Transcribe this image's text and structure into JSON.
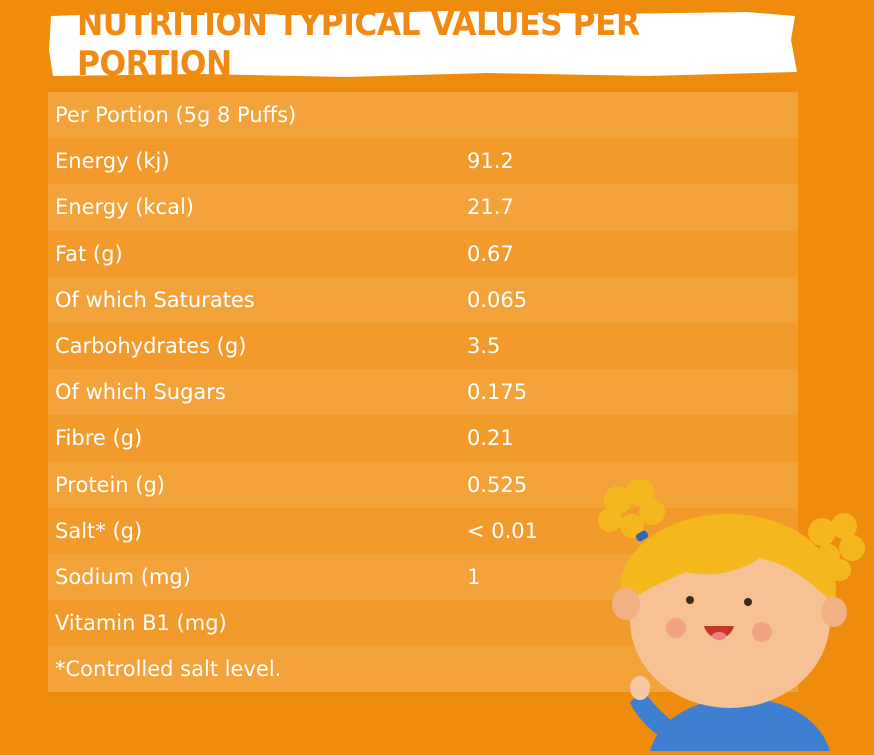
{
  "title": "NUTRITION TYPICAL VALUES PER PORTION",
  "rows": [
    {
      "label": "Per Portion (5g 8 Puffs)",
      "value": ""
    },
    {
      "label": "Energy (kj)",
      "value": "91.2"
    },
    {
      "label": "Energy (kcal)",
      "value": "21.7"
    },
    {
      "label": "Fat (g)",
      "value": "0.67"
    },
    {
      "label": "Of which Saturates",
      "value": "0.065"
    },
    {
      "label": "Carbohydrates (g)",
      "value": "3.5"
    },
    {
      "label": "Of which Sugars",
      "value": "0.175"
    },
    {
      "label": "Fibre (g)",
      "value": "0.21"
    },
    {
      "label": "Protein (g)",
      "value": "0.525"
    },
    {
      "label": "Salt* (g)",
      "value": "< 0.01"
    },
    {
      "label": "Sodium (mg)",
      "value": "1"
    },
    {
      "label": "Vitamin B1 (mg)",
      "value": ""
    },
    {
      "label": "*Controlled salt level.",
      "value": ""
    }
  ],
  "colors": {
    "background": "#ef8c0d",
    "row_light": "#f4a33b",
    "row_dark": "#f29b2c",
    "title_text": "#f08a10",
    "banner": "#ffffff"
  }
}
